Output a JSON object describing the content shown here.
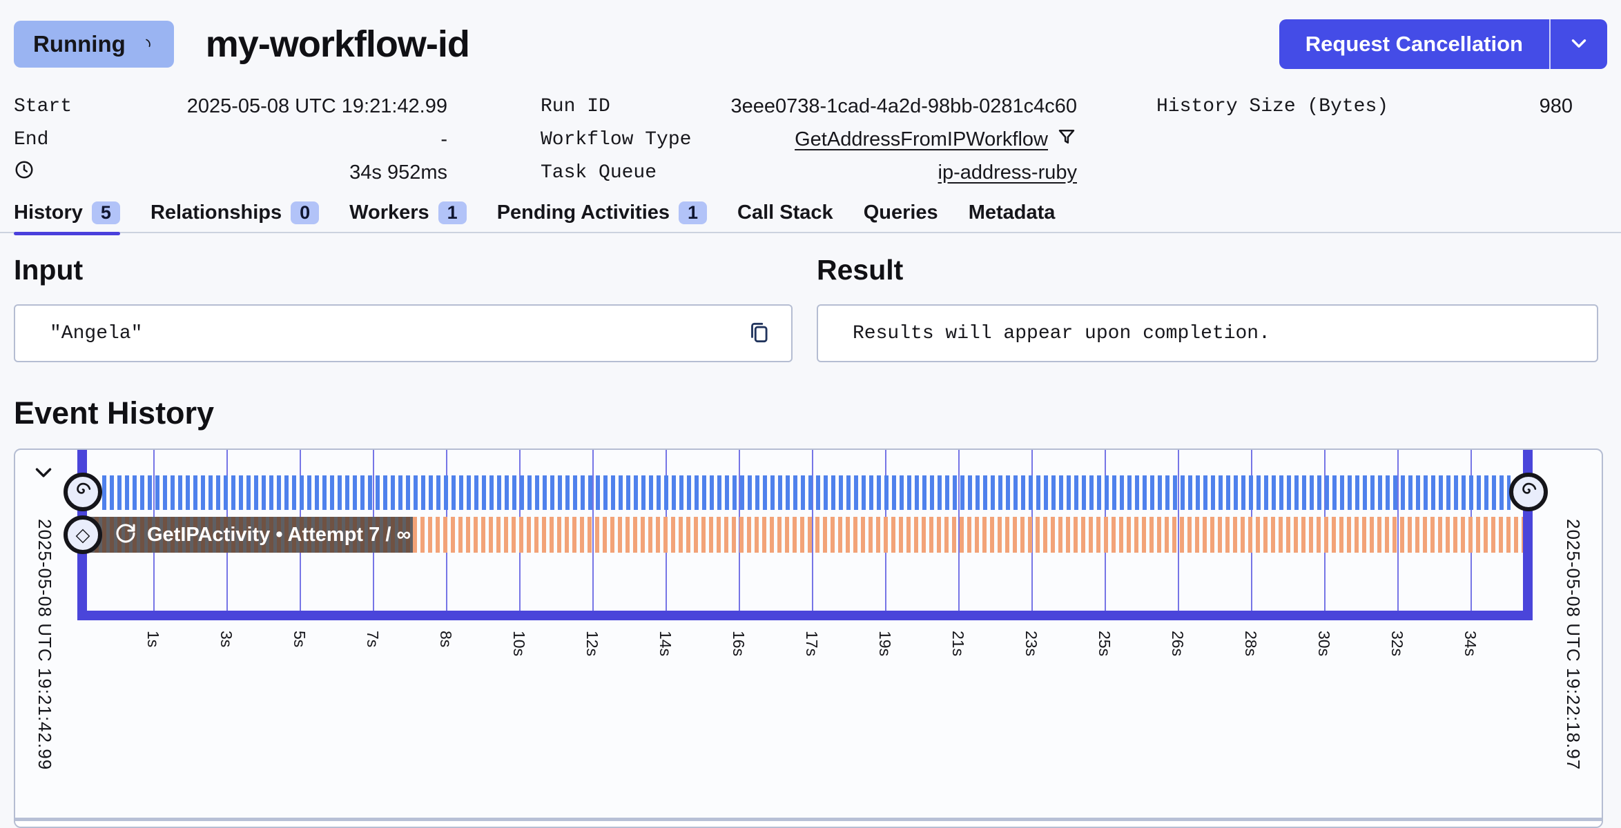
{
  "header": {
    "status": "Running",
    "workflow_id": "my-workflow-id",
    "cancel_label": "Request Cancellation"
  },
  "details": {
    "start": {
      "label": "Start",
      "value": "2025-05-08 UTC 19:21:42.99"
    },
    "end": {
      "label": "End",
      "value": "-"
    },
    "duration": {
      "value": "34s 952ms"
    },
    "run_id": {
      "label": "Run ID",
      "value": "3eee0738-1cad-4a2d-98bb-0281c4c60"
    },
    "workflow_type": {
      "label": "Workflow Type",
      "value": "GetAddressFromIPWorkflow"
    },
    "task_queue": {
      "label": "Task Queue",
      "value": "ip-address-ruby"
    },
    "history_size": {
      "label": "History Size (Bytes)",
      "value": "980"
    }
  },
  "tabs": [
    {
      "label": "History",
      "count": "5",
      "active": true
    },
    {
      "label": "Relationships",
      "count": "0",
      "active": false
    },
    {
      "label": "Workers",
      "count": "1",
      "active": false
    },
    {
      "label": "Pending Activities",
      "count": "1",
      "active": false
    },
    {
      "label": "Call Stack",
      "count": null,
      "active": false
    },
    {
      "label": "Queries",
      "count": null,
      "active": false
    },
    {
      "label": "Metadata",
      "count": null,
      "active": false
    }
  ],
  "input": {
    "title": "Input",
    "value": "\"Angela\""
  },
  "result": {
    "title": "Result",
    "value": "Results will appear upon completion."
  },
  "event_history": {
    "title": "Event History",
    "start_timestamp": "2025-05-08 UTC 19:21:42.99",
    "end_timestamp": "2025-05-08 UTC 19:22:18.97",
    "ticks": [
      "1s",
      "3s",
      "5s",
      "7s",
      "8s",
      "10s",
      "12s",
      "14s",
      "16s",
      "17s",
      "19s",
      "21s",
      "23s",
      "25s",
      "26s",
      "28s",
      "30s",
      "32s",
      "34s"
    ],
    "rows": [
      {
        "type": "workflow",
        "marker_icon": "spiral-icon"
      },
      {
        "type": "activity",
        "marker_icon": "diamond-icon",
        "label": "GetIPActivity • Attempt 7 / ∞"
      }
    ],
    "colors": {
      "frame": "#4a45da",
      "workflow_stripe": "#4f81ec",
      "activity_stripe": "#f2a378",
      "activity_dark_a": "#6f5243",
      "activity_dark_b": "#5f5f63",
      "gridline": "#5553e0"
    }
  },
  "colors": {
    "accent_indigo": "#444ce7",
    "status_badge_bg": "#9ab4f2",
    "tab_badge_bg": "#b2c3f8",
    "panel_border": "#b5bdd2",
    "page_bg": "#f7f8fb"
  },
  "icons": {
    "status_spinner": "spinner-icon",
    "duration": "clock-icon",
    "filter": "filter-funnel-icon",
    "copy": "copy-icon",
    "menu_caret": "chevron-down-icon",
    "collapse": "chevron-down-icon",
    "retry": "retry-icon"
  }
}
